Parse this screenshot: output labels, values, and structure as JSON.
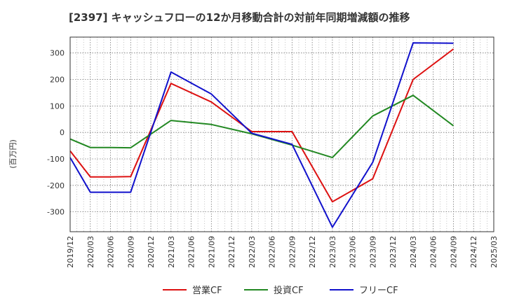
{
  "chart_data": {
    "type": "line",
    "title": "[2397]  キャッシュフローの12か月移動合計の対前年同期増減額の推移",
    "ylabel": "(百万円)",
    "xlabel": "",
    "ylim": [
      -375,
      360
    ],
    "yticks": [
      300,
      200,
      100,
      0,
      -100,
      -200,
      -300
    ],
    "ytick_labels": [
      "300",
      "200",
      "100",
      "0",
      "-100",
      "-200",
      "-300"
    ],
    "categories": [
      "2019/12",
      "2020/03",
      "2020/06",
      "2020/09",
      "2020/12",
      "2021/03",
      "2021/06",
      "2021/09",
      "2021/12",
      "2022/03",
      "2022/06",
      "2022/09",
      "2022/12",
      "2023/03",
      "2023/06",
      "2023/09",
      "2023/12",
      "2024/03",
      "2024/06",
      "2024/09",
      "2024/12",
      "2025/03"
    ],
    "grid": true,
    "legend_position": "bottom",
    "series": [
      {
        "name": "営業CF",
        "color": "#dd1111",
        "values": [
          -70,
          -168,
          -168,
          -167,
          null,
          185,
          null,
          115,
          null,
          3,
          null,
          3,
          null,
          -262,
          null,
          -175,
          null,
          200,
          null,
          315,
          null,
          null
        ]
      },
      {
        "name": "投資CF",
        "color": "#228822",
        "values": [
          -25,
          -57,
          -57,
          -58,
          null,
          45,
          null,
          30,
          null,
          -5,
          null,
          -48,
          null,
          -95,
          null,
          62,
          null,
          140,
          null,
          25,
          null,
          null
        ]
      },
      {
        "name": "フリーCF",
        "color": "#1111cc",
        "values": [
          -95,
          -226,
          -226,
          -226,
          null,
          228,
          null,
          145,
          null,
          -3,
          null,
          -45,
          null,
          -358,
          null,
          -113,
          null,
          338,
          null,
          337,
          null,
          null
        ]
      }
    ]
  }
}
